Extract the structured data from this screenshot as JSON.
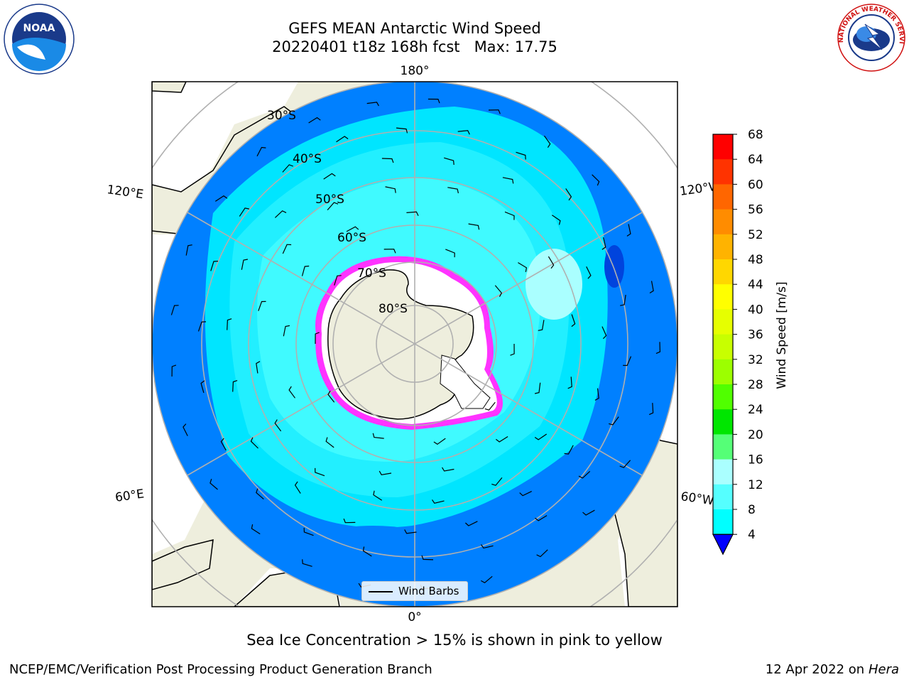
{
  "title": {
    "line1": "GEFS MEAN Antarctic Wind Speed",
    "line2": "20220401 t18z 168h fcst   Max: 17.75"
  },
  "logos": {
    "left": "NOAA",
    "right": "NATIONAL WEATHER SERVICE"
  },
  "map": {
    "projection": "south-polar-stereographic",
    "longitude_labels": {
      "top": "180°",
      "bottom": "0°",
      "left_upper": "120°E",
      "left_lower": "60°E",
      "right_upper": "120°W",
      "right_lower": "60°W"
    },
    "latitude_labels": [
      "30°S",
      "40°S",
      "50°S",
      "60°S",
      "70°S",
      "80°S"
    ],
    "legend_label": "Wind Barbs",
    "colors": {
      "land": "#eeeedd",
      "ocean_dark": "#0072ff",
      "ocean_mid": "#00e5ff",
      "ocean_light": "#4dffff",
      "grid": "#b0b0b0",
      "sea_ice": "#ff33ff"
    }
  },
  "colorbar": {
    "label": "Wind Speed [m/s]",
    "ticks": [
      "68",
      "64",
      "60",
      "56",
      "52",
      "48",
      "44",
      "40",
      "36",
      "32",
      "28",
      "24",
      "20",
      "16",
      "12",
      "8",
      "4"
    ],
    "colors": [
      "#ff0000",
      "#ff3300",
      "#ff6600",
      "#ff8c00",
      "#ffb300",
      "#ffd700",
      "#ffff00",
      "#e6ff00",
      "#c8ff00",
      "#9cff00",
      "#50ff00",
      "#00e600",
      "#55ff77",
      "#aaffff",
      "#55ffff",
      "#00ffff",
      "#0066ff"
    ],
    "underflow_color": "#0000ff"
  },
  "caption": "Sea Ice Concentration > 15% is shown in pink to yellow",
  "footer": {
    "credit": "NCEP/EMC/Verification Post Processing Product Generation Branch",
    "date": "12 Apr 2022 on",
    "host": "Hera"
  }
}
